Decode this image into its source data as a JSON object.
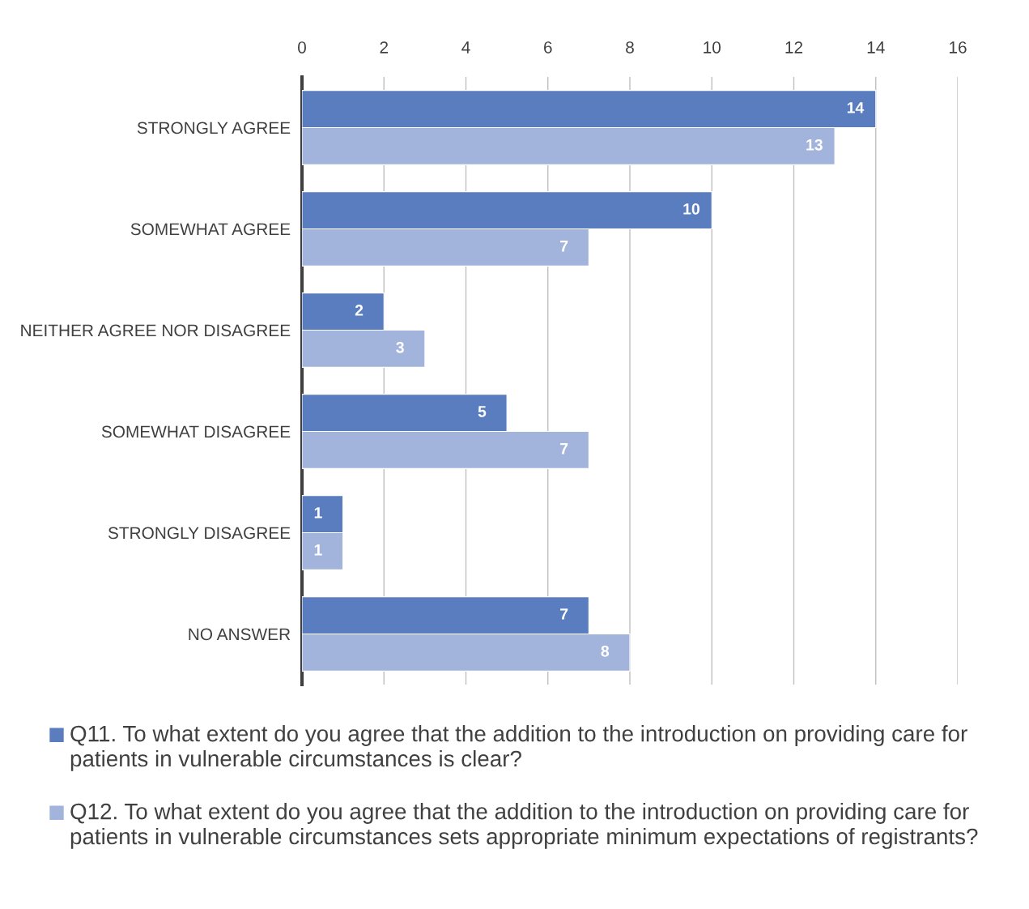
{
  "chart_data": {
    "type": "bar",
    "orientation": "horizontal",
    "categories": [
      "STRONGLY AGREE",
      "SOMEWHAT AGREE",
      "NEITHER AGREE NOR DISAGREE",
      "SOMEWHAT DISAGREE",
      "STRONGLY DISAGREE",
      "NO ANSWER"
    ],
    "series": [
      {
        "name": "Q11. To what extent do you agree that the addition to the introduction on providing care for patients in vulnerable circumstances is clear?",
        "color": "#5a7dbf",
        "values": [
          14,
          10,
          2,
          5,
          1,
          7
        ]
      },
      {
        "name": "Q12. To what extent do you agree that the addition to the introduction on providing care for patients in vulnerable circumstances sets appropriate minimum expectations of registrants?",
        "color": "#a2b3dc",
        "values": [
          13,
          7,
          3,
          7,
          1,
          8
        ]
      }
    ],
    "xlim": [
      0,
      16
    ],
    "xticks": [
      0,
      2,
      4,
      6,
      8,
      10,
      12,
      14,
      16
    ],
    "grid": "x",
    "legend": "bottom",
    "data_labels": true
  }
}
